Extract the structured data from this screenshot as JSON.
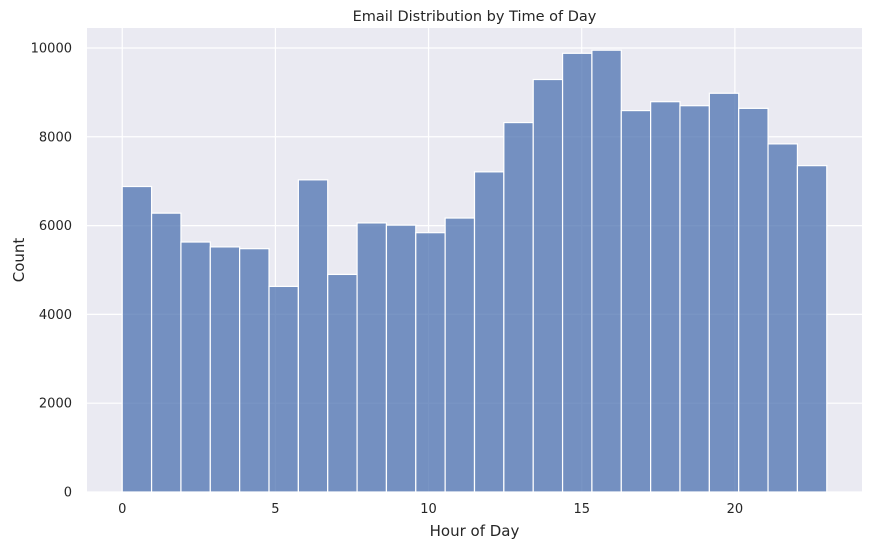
{
  "chart_data": {
    "type": "bar",
    "title": "Email Distribution by Time of Day",
    "xlabel": "Hour of Day",
    "ylabel": "Count",
    "bin_edges": [
      0,
      0.958,
      1.917,
      2.875,
      3.833,
      4.792,
      5.75,
      6.708,
      7.667,
      8.625,
      9.583,
      10.542,
      11.5,
      12.458,
      13.417,
      14.375,
      15.333,
      16.292,
      17.25,
      18.208,
      19.167,
      20.125,
      21.083,
      22.042,
      23
    ],
    "values": [
      6880,
      6280,
      5630,
      5520,
      5480,
      4630,
      7030,
      4900,
      6060,
      6010,
      5840,
      6170,
      7210,
      8320,
      9290,
      9880,
      9950,
      8590,
      8790,
      8700,
      8980,
      8640,
      7840,
      7350
    ],
    "xlim": [
      -1.15,
      24.15
    ],
    "ylim": [
      0,
      10450
    ],
    "xticks": [
      0,
      5,
      10,
      15,
      20
    ],
    "yticks": [
      0,
      2000,
      4000,
      6000,
      8000,
      10000
    ],
    "grid": true,
    "bar_color": "#4c72b0",
    "background_color": "#eaeaf2"
  }
}
